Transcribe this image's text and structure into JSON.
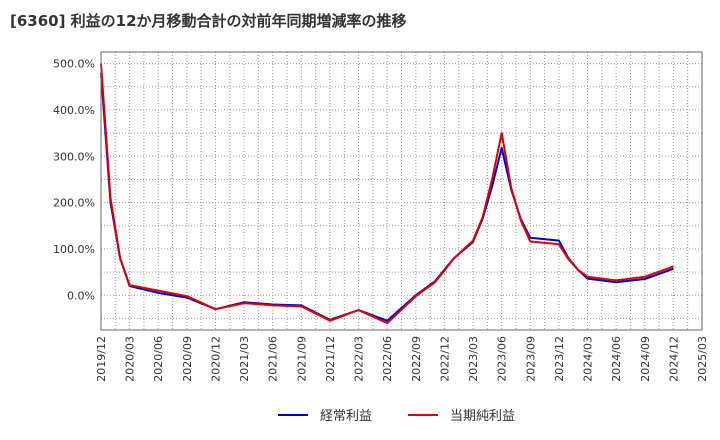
{
  "chart_data": {
    "type": "line",
    "title": "[6360]  利益の12か月移動合計の対前年同期増減率の推移",
    "x": [
      "2019/12",
      "2020/01",
      "2020/02",
      "2020/03",
      "2020/06",
      "2020/09",
      "2020/12",
      "2021/03",
      "2021/06",
      "2021/09",
      "2021/12",
      "2022/03",
      "2022/06",
      "2022/09",
      "2022/10",
      "2022/11",
      "2022/12",
      "2023/01",
      "2023/03",
      "2023/04",
      "2023/05",
      "2023/06",
      "2023/07",
      "2023/08",
      "2023/09",
      "2023/12",
      "2024/01",
      "2024/02",
      "2024/03",
      "2024/06",
      "2024/09",
      "2024/12"
    ],
    "x_ticks": [
      "2019/12",
      "2020/03",
      "2020/06",
      "2020/09",
      "2020/12",
      "2021/03",
      "2021/06",
      "2021/09",
      "2021/12",
      "2022/03",
      "2022/06",
      "2022/09",
      "2022/12",
      "2023/03",
      "2023/06",
      "2023/09",
      "2023/12",
      "2024/03",
      "2024/06",
      "2024/09",
      "2024/12",
      "2025/03"
    ],
    "y_ticks": [
      "500.0%",
      "400.0%",
      "300.0%",
      "200.0%",
      "100.0%",
      "0.0%"
    ],
    "y_tick_values": [
      500,
      400,
      300,
      200,
      100,
      0
    ],
    "ylim": [
      -75,
      525
    ],
    "xlim": [
      0,
      63
    ],
    "series": [
      {
        "name": "経常利益",
        "color": "#0000cc",
        "months": [
          0,
          1,
          2,
          3,
          6,
          9,
          12,
          15,
          18,
          21,
          24,
          27,
          30,
          33,
          34,
          35,
          36,
          37,
          39,
          40,
          41,
          42,
          43,
          44,
          45,
          48,
          49,
          50,
          51,
          54,
          57,
          60
        ],
        "values": [
          480,
          200,
          80,
          20,
          5,
          -5,
          -30,
          -15,
          -20,
          -22,
          -53,
          -32,
          -55,
          0,
          15,
          30,
          55,
          80,
          115,
          165,
          235,
          318,
          228,
          165,
          124,
          118,
          80,
          55,
          36,
          28,
          35,
          57
        ]
      },
      {
        "name": "当期純利益",
        "color": "#dd0000",
        "months": [
          0,
          1,
          2,
          3,
          6,
          9,
          12,
          15,
          18,
          21,
          24,
          27,
          30,
          33,
          34,
          35,
          36,
          37,
          39,
          40,
          41,
          42,
          43,
          44,
          45,
          48,
          49,
          50,
          51,
          54,
          57,
          60
        ],
        "values": [
          500,
          210,
          80,
          22,
          10,
          -2,
          -30,
          -17,
          -22,
          -24,
          -55,
          -32,
          -60,
          -2,
          13,
          28,
          53,
          80,
          118,
          168,
          250,
          350,
          232,
          162,
          116,
          110,
          78,
          55,
          40,
          32,
          40,
          62
        ]
      }
    ]
  }
}
